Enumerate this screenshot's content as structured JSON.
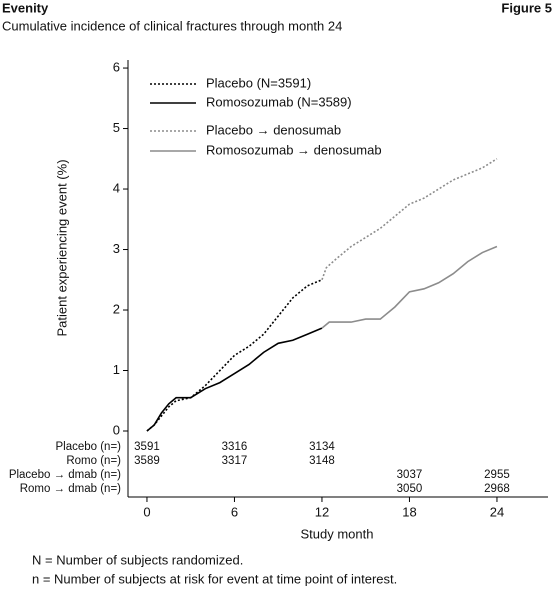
{
  "header": {
    "brand": "Evenity",
    "figure": "Figure 5"
  },
  "chart_data": {
    "type": "line",
    "title": "Cumulative incidence of clinical fractures through month 24",
    "x_label": "Study month",
    "y_label": "Patient experiencing event (%)",
    "xlim": [
      -1.3,
      27.5
    ],
    "ylim": [
      0,
      6.1
    ],
    "xticks": [
      0,
      6,
      12,
      18,
      24
    ],
    "yticks": [
      0,
      1,
      2,
      3,
      4,
      5,
      6
    ],
    "series": [
      {
        "name": "Placebo (N=3591)",
        "color": "#000000",
        "style": "dotted",
        "x": [
          0,
          0.5,
          1,
          1.5,
          2,
          3,
          4,
          5,
          6,
          7,
          8,
          9,
          10,
          11,
          12
        ],
        "values": [
          0,
          0.1,
          0.25,
          0.4,
          0.5,
          0.55,
          0.75,
          1.0,
          1.25,
          1.4,
          1.6,
          1.9,
          2.2,
          2.4,
          2.5
        ]
      },
      {
        "name": "Romosozumab (N=3589)",
        "color": "#000000",
        "style": "solid",
        "x": [
          0,
          0.5,
          1,
          1.5,
          2,
          3,
          4,
          5,
          6,
          7,
          8,
          9,
          10,
          11,
          12
        ],
        "values": [
          0,
          0.1,
          0.3,
          0.45,
          0.55,
          0.55,
          0.7,
          0.8,
          0.95,
          1.1,
          1.3,
          1.45,
          1.5,
          1.6,
          1.7
        ]
      },
      {
        "name": "Placebo → denosumab",
        "color": "#8c8c8c",
        "style": "dotted",
        "x": [
          12,
          12.3,
          13,
          14,
          15,
          16,
          17,
          18,
          19,
          20,
          21,
          22,
          23,
          24
        ],
        "values": [
          2.5,
          2.7,
          2.85,
          3.05,
          3.2,
          3.35,
          3.55,
          3.75,
          3.85,
          4.0,
          4.15,
          4.25,
          4.35,
          4.5
        ]
      },
      {
        "name": "Romosozumab → denosumab",
        "color": "#8c8c8c",
        "style": "solid",
        "x": [
          12,
          12.5,
          14,
          15,
          16,
          17,
          18,
          19,
          20,
          21,
          22,
          23,
          24
        ],
        "values": [
          1.7,
          1.8,
          1.8,
          1.85,
          1.85,
          2.05,
          2.3,
          2.35,
          2.45,
          2.6,
          2.8,
          2.95,
          3.05
        ]
      }
    ],
    "risk_table": [
      {
        "label": "Placebo (n=)",
        "months": [
          0,
          6,
          12
        ],
        "counts": [
          "3591",
          "3316",
          "3134"
        ]
      },
      {
        "label": "Romo (n=)",
        "months": [
          0,
          6,
          12
        ],
        "counts": [
          "3589",
          "3317",
          "3148"
        ]
      },
      {
        "label": "Placebo → dmab (n=)",
        "months": [
          18,
          24
        ],
        "counts": [
          "3037",
          "2955"
        ]
      },
      {
        "label": "Romo → dmab (n=)",
        "months": [
          18,
          24
        ],
        "counts": [
          "3050",
          "2968"
        ]
      }
    ]
  },
  "footnotes": [
    "N = Number of subjects randomized.",
    "n = Number of subjects at risk for event at time point of interest."
  ]
}
